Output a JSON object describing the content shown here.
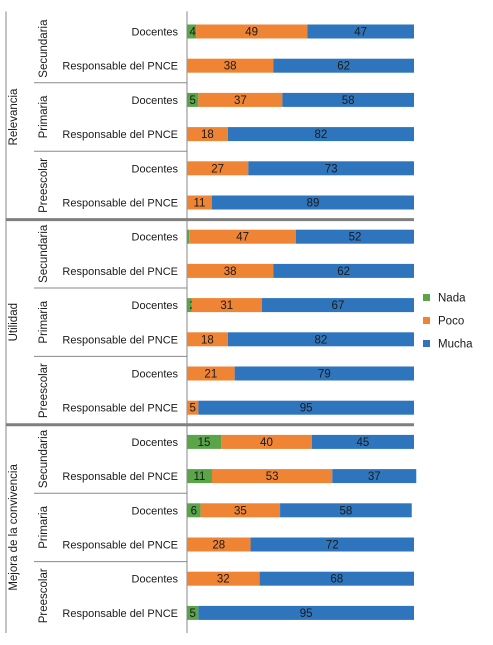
{
  "chart_data": {
    "type": "bar",
    "stacked": "percent",
    "orientation": "horizontal",
    "legend_position": "right",
    "series": [
      {
        "name": "Nada",
        "color": "#5aa54a"
      },
      {
        "name": "Poco",
        "color": "#ef8434"
      },
      {
        "name": "Mucha",
        "color": "#2e75bd"
      }
    ],
    "groups": [
      {
        "label": "Relevancia",
        "levels": [
          {
            "label": "Secundaria",
            "rows": [
              {
                "label": "Docentes",
                "values": [
                  4,
                  49,
                  47
                ]
              },
              {
                "label": "Responsable del PNCE",
                "values": [
                  0,
                  38,
                  62
                ]
              }
            ]
          },
          {
            "label": "Primaria",
            "rows": [
              {
                "label": "Docentes",
                "values": [
                  5,
                  37,
                  58
                ]
              },
              {
                "label": "Responsable del PNCE",
                "values": [
                  0,
                  18,
                  82
                ]
              }
            ]
          },
          {
            "label": "Preescolar",
            "rows": [
              {
                "label": "Docentes",
                "values": [
                  0,
                  27,
                  73
                ]
              },
              {
                "label": "Responsable del PNCE",
                "values": [
                  0,
                  11,
                  89
                ]
              }
            ]
          }
        ]
      },
      {
        "label": "Utilidad",
        "levels": [
          {
            "label": "Secundaria",
            "rows": [
              {
                "label": "Docentes",
                "values": [
                  1,
                  47,
                  52
                ]
              },
              {
                "label": "Responsable del PNCE",
                "values": [
                  0,
                  38,
                  62
                ]
              }
            ]
          },
          {
            "label": "Primaria",
            "rows": [
              {
                "label": "Docentes",
                "values": [
                  2,
                  31,
                  67
                ]
              },
              {
                "label": "Responsable del PNCE",
                "values": [
                  0,
                  18,
                  82
                ]
              }
            ]
          },
          {
            "label": "Preescolar",
            "rows": [
              {
                "label": "Docentes",
                "values": [
                  0,
                  21,
                  79
                ]
              },
              {
                "label": "Responsable del PNCE",
                "values": [
                  0,
                  5,
                  95
                ]
              }
            ]
          }
        ]
      },
      {
        "label": "Mejora de la convivencia",
        "levels": [
          {
            "label": "Secundaria",
            "rows": [
              {
                "label": "Docentes",
                "values": [
                  15,
                  40,
                  45
                ]
              },
              {
                "label": "Responsable del PNCE",
                "values": [
                  11,
                  53,
                  37
                ]
              }
            ]
          },
          {
            "label": "Primaria",
            "rows": [
              {
                "label": "Docentes",
                "values": [
                  6,
                  35,
                  58
                ]
              },
              {
                "label": "Responsable del PNCE",
                "values": [
                  0,
                  28,
                  72
                ]
              }
            ]
          },
          {
            "label": "Preescolar",
            "rows": [
              {
                "label": "Docentes",
                "values": [
                  0,
                  32,
                  68
                ]
              },
              {
                "label": "Responsable del PNCE",
                "values": [
                  5,
                  0,
                  95
                ]
              }
            ]
          }
        ]
      }
    ]
  }
}
